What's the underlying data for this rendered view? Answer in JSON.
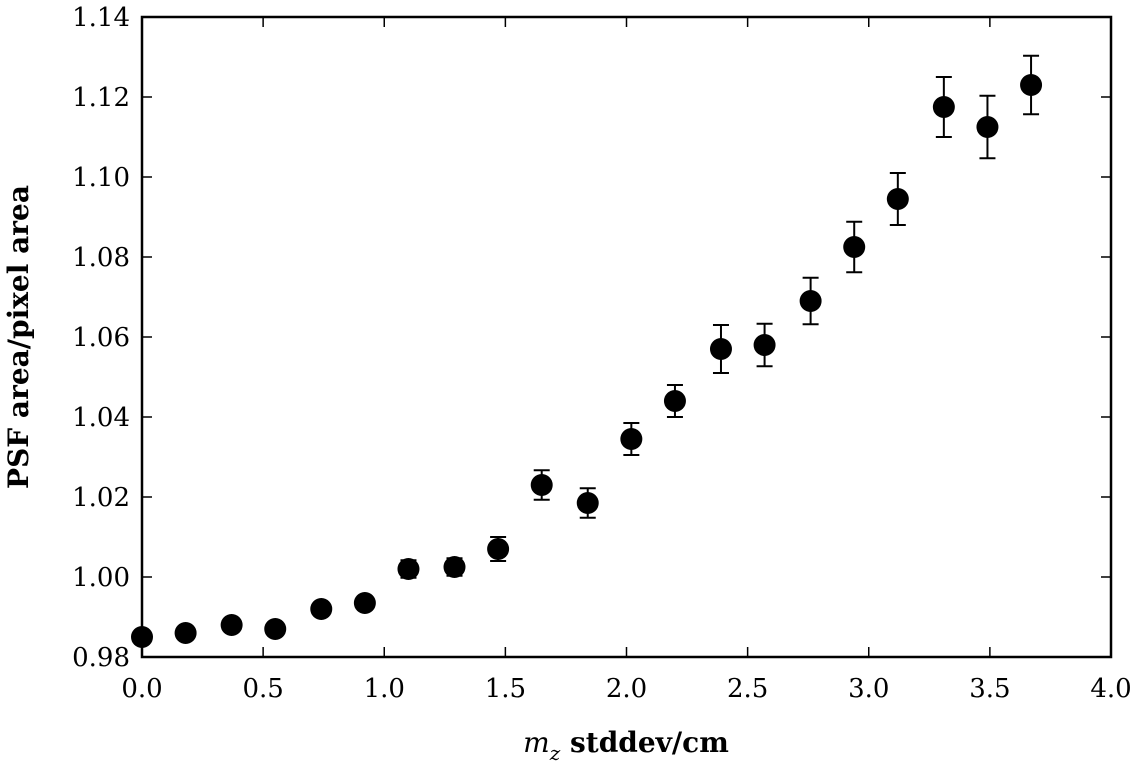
{
  "chart_data": {
    "type": "scatter",
    "title": "",
    "xlabel_symbol": "m",
    "xlabel_subscript": "z",
    "xlabel_rest": " stddev/cm",
    "ylabel": "PSF area/pixel area",
    "xlim": [
      0.0,
      4.0
    ],
    "ylim": [
      0.98,
      1.14
    ],
    "xticks": [
      0.0,
      0.5,
      1.0,
      1.5,
      2.0,
      2.5,
      3.0,
      3.5,
      4.0
    ],
    "xtick_labels": [
      "0.0",
      "0.5",
      "1.0",
      "1.5",
      "2.0",
      "2.5",
      "3.0",
      "3.5",
      "4.0"
    ],
    "yticks": [
      0.98,
      1.0,
      1.02,
      1.04,
      1.06,
      1.08,
      1.1,
      1.12,
      1.14
    ],
    "ytick_labels": [
      "0.98",
      "1.00",
      "1.02",
      "1.04",
      "1.06",
      "1.08",
      "1.10",
      "1.12",
      "1.14"
    ],
    "grid": false,
    "marker_color": "#000000",
    "series": [
      {
        "x": [
          0.0,
          0.18,
          0.37,
          0.55,
          0.74,
          0.92,
          1.1,
          1.29,
          1.47,
          1.65,
          1.84,
          2.02,
          2.2,
          2.39,
          2.57,
          2.76,
          2.94,
          3.12,
          3.31,
          3.49,
          3.67
        ],
        "y": [
          0.985,
          0.986,
          0.988,
          0.987,
          0.992,
          0.9935,
          1.002,
          1.0025,
          1.007,
          1.023,
          1.0185,
          1.0345,
          1.044,
          1.057,
          1.058,
          1.069,
          1.0825,
          1.0945,
          1.1175,
          1.1125,
          1.123
        ],
        "yerr": [
          0.0,
          0.0,
          0.0,
          0.0,
          0.0,
          0.0,
          0.0022,
          0.0022,
          0.003,
          0.0037,
          0.0037,
          0.004,
          0.004,
          0.006,
          0.0053,
          0.0058,
          0.0063,
          0.0065,
          0.0075,
          0.0078,
          0.0073
        ]
      }
    ]
  }
}
